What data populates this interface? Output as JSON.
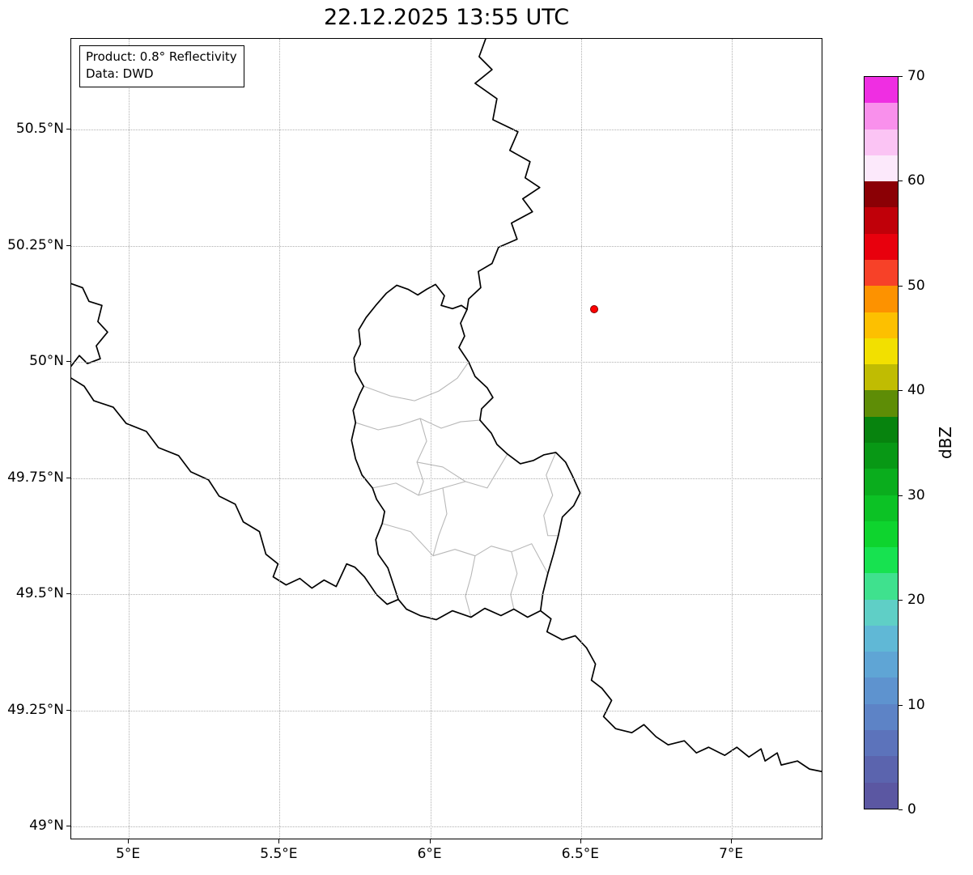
{
  "title": "22.12.2025 13:55 UTC",
  "annotation": {
    "line1": "Product: 0.8° Reflectivity",
    "line2": "Data: DWD"
  },
  "axes": {
    "lon_min": 4.809,
    "lon_max": 7.303,
    "lat_min": 48.971,
    "lat_max": 50.696,
    "grid_color": "#b0b0b0",
    "x_ticks": [
      {
        "value": 5.0,
        "label": "5°E"
      },
      {
        "value": 5.5,
        "label": "5.5°E"
      },
      {
        "value": 6.0,
        "label": "6°E"
      },
      {
        "value": 6.5,
        "label": "6.5°E"
      },
      {
        "value": 7.0,
        "label": "7°E"
      }
    ],
    "y_ticks": [
      {
        "value": 49.0,
        "label": "49°N"
      },
      {
        "value": 49.25,
        "label": "49.25°N"
      },
      {
        "value": 49.5,
        "label": "49.5°N"
      },
      {
        "value": 49.75,
        "label": "49.75°N"
      },
      {
        "value": 50.0,
        "label": "50°N"
      },
      {
        "value": 50.25,
        "label": "50.25°N"
      },
      {
        "value": 50.5,
        "label": "50.5°N"
      }
    ]
  },
  "colorbar": {
    "label": "dBZ",
    "min": 0,
    "max": 70,
    "ticks": [
      0,
      10,
      20,
      30,
      40,
      50,
      60,
      70
    ],
    "colors_bottom_to_top": [
      "#5b57a2",
      "#5b64ae",
      "#5c73bb",
      "#5d83c6",
      "#5e93cf",
      "#5fa5d5",
      "#60b8d6",
      "#5fcfc6",
      "#3fe18e",
      "#17e250",
      "#0ed42e",
      "#0cc225",
      "#0aad1d",
      "#089815",
      "#07830e",
      "#5e8d06",
      "#c0bc02",
      "#f2e000",
      "#fdc000",
      "#fd9200",
      "#f74128",
      "#e8000d",
      "#c00009",
      "#8b0005",
      "#fce9fb",
      "#fbc4f4",
      "#f990ec",
      "#ef2ee2"
    ]
  },
  "marker": {
    "lon": 6.545,
    "lat": 50.112,
    "fill": "#ff0000",
    "edge": "#7a0000"
  },
  "map": {
    "national_color": "#000000",
    "district_color": "#b8b8b8",
    "national_paths": [
      "M 513 0 L 505 22 L 521 38 L 500 55 L 527 74 L 522 100 L 553 115 L 543 138 L 568 152 L 562 172 L 580 184 L 559 198 L 571 214 L 545 228 L 552 248 L 529 258 L 521 278 L 504 288 L 507 308 L 492 322 L 490 335",
      "M 451 304 L 462 318 L 458 330 L 472 334 L 483 330 L 490 335 L 482 352 L 487 368 L 480 382 L 492 400 L 500 418 L 515 432 L 522 444 L 508 458 L 506 472 L 520 488 L 527 502 L 540 514 L 556 526 L 572 522 L 585 515 L 600 512 L 612 524 L 620 540 L 630 562 L 622 578 L 608 592 L 603 615 L 597 638 L 590 662 L 584 686 L 581 708 L 565 716 L 548 706 L 532 714 L 512 705 L 495 716 L 472 708 L 452 719 L 432 714 L 415 706 L 405 694 L 399 676 L 392 655 L 380 638 L 377 620 L 385 600 L 388 585 L 378 570 L 373 556 L 360 540 L 352 520 L 347 497 L 352 475 L 349 460 L 357 440 L 362 430 L 352 412 L 350 395 L 358 378 L 356 360 L 365 345 L 377 330 L 390 315 L 403 305 L 417 310 L 429 317 L 440 310 Z",
      "M 0 303 L 14 308 L 22 325 L 38 330 L 33 350 L 45 363 L 31 380 L 36 396 L 20 402 L 10 392 L 0 405",
      "M 0 420 L 16 430 L 28 448 L 52 456 L 68 476 L 93 486 L 108 506 L 133 516 L 148 536 L 170 546 L 183 566 L 203 576 L 213 598 L 233 610 L 241 638 L 256 650 L 250 666 L 266 676 L 283 668 L 298 680 L 313 670 L 328 678 L 341 650 L 351 654 L 363 666 L 378 688 L 391 700 L 405 694",
      "M 581 708 L 594 718 L 589 734 L 608 744 L 624 739 L 638 754 L 649 774 L 644 794 L 657 804 L 669 819 L 659 839 L 674 854 L 694 859 L 709 849 L 724 864 L 739 874 L 759 869 L 774 884 L 789 877 L 809 887 L 824 877 L 839 889 L 854 879 L 859 894 L 874 884 L 879 899 L 899 894 L 914 904 L 929 907"
    ],
    "district_paths": [
      "M 362 430 L 395 442 L 425 448 L 455 436 L 478 420 L 492 400",
      "M 352 475 L 380 484 L 408 478 L 432 470 L 458 482 L 482 474 L 506 472",
      "M 432 470 L 440 498 L 428 524 L 436 548 L 430 565",
      "M 373 556 L 402 550 L 430 565 L 460 556 L 488 548 L 515 556 L 540 514",
      "M 460 556 L 465 588 L 455 615 L 448 640",
      "M 385 600 L 420 610 L 448 640 L 475 632 L 500 640 L 520 628 L 545 635 L 570 625 L 590 662",
      "M 500 640 L 495 665 L 488 690 L 495 716",
      "M 545 635 L 552 662 L 544 688 L 548 706",
      "M 600 512 L 588 540 L 596 565 L 585 590 L 590 615 L 603 615",
      "M 428 524 L 460 530 L 488 548"
    ]
  },
  "chart_data": {
    "type": "map",
    "title": "22.12.2025 13:55 UTC",
    "product": "0.8° Reflectivity",
    "data_source": "DWD",
    "extent": {
      "lon": [
        4.81,
        7.3
      ],
      "lat": [
        48.97,
        50.7
      ]
    },
    "x_tick_labels": [
      "5°E",
      "5.5°E",
      "6°E",
      "6.5°E",
      "7°E"
    ],
    "y_tick_labels": [
      "49°N",
      "49.25°N",
      "49.5°N",
      "49.75°N",
      "50°N",
      "50.25°N",
      "50.5°N"
    ],
    "grid": "dotted",
    "colorbar": {
      "label": "dBZ",
      "range": [
        0,
        70
      ],
      "ticks": [
        0,
        10,
        20,
        30,
        40,
        50,
        60,
        70
      ],
      "position": "right"
    },
    "radar_marker": {
      "lon": 6.55,
      "lat": 50.11,
      "style": "red dot"
    },
    "regions_shown": "Luxembourg with gray district borders; national borders of Belgium, Germany, France in black",
    "reflectivity_echoes": "none visible (empty map)"
  }
}
